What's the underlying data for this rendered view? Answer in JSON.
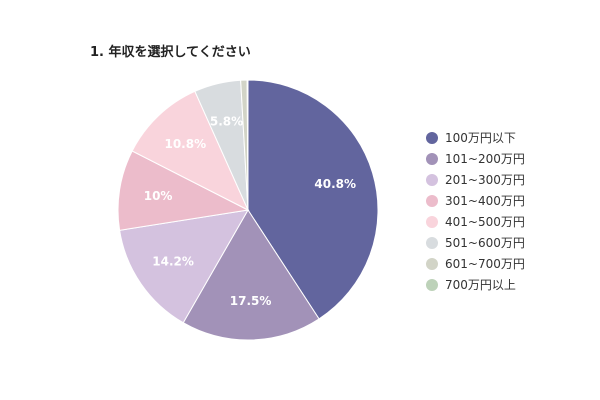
{
  "chart_data": {
    "type": "pie",
    "title": "1. 年収を選択してください",
    "categories": [
      "100万円以下",
      "101~200万円",
      "201~300万円",
      "301~400万円",
      "401~500万円",
      "501~600万円",
      "601~700万円",
      "700万円以上"
    ],
    "values": [
      40.8,
      17.5,
      14.2,
      10,
      10.8,
      5.8,
      0.8,
      0.1
    ],
    "data_labels": [
      "40.8%",
      "17.5%",
      "14.2%",
      "10%",
      "10.8%",
      "5.8%",
      "",
      ""
    ],
    "colors": [
      "#62659e",
      "#a292b8",
      "#d4c2df",
      "#ecbccb",
      "#f9d4dc",
      "#d8dcdf",
      "#d2d4c7",
      "#bdd2b9"
    ],
    "legend_position": "right"
  }
}
